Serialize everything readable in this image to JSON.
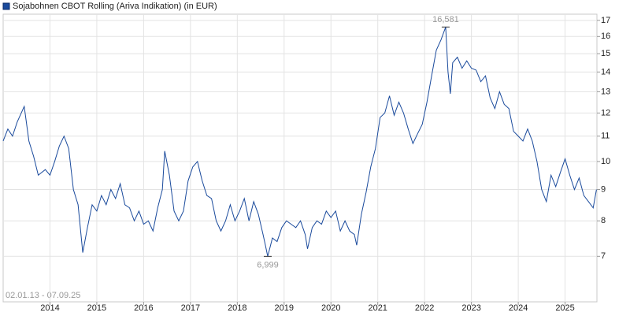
{
  "chart_data": {
    "type": "line",
    "title": "Sojabohnen CBOT Rolling (Ariva Indikation) (in EUR)",
    "annotations": [
      "02.01.13 - 07.09.25"
    ],
    "log_scale": true,
    "grid": true,
    "legend": "top-left",
    "xlim": [
      2013.0,
      2025.68
    ],
    "xticks": [
      2014,
      2015,
      2016,
      2017,
      2018,
      2019,
      2020,
      2021,
      2022,
      2023,
      2024,
      2025
    ],
    "ylim": [
      5.9,
      17.4
    ],
    "yticks": [
      7,
      8,
      9,
      10,
      11,
      12,
      13,
      14,
      15,
      16,
      17
    ],
    "x": [
      2013.0,
      2013.1,
      2013.2,
      2013.3,
      2013.45,
      2013.55,
      2013.65,
      2013.75,
      2013.9,
      2014.0,
      2014.1,
      2014.2,
      2014.3,
      2014.4,
      2014.5,
      2014.6,
      2014.7,
      2014.8,
      2014.9,
      2015.0,
      2015.1,
      2015.2,
      2015.3,
      2015.4,
      2015.5,
      2015.6,
      2015.7,
      2015.8,
      2015.9,
      2016.0,
      2016.1,
      2016.2,
      2016.3,
      2016.4,
      2016.45,
      2016.55,
      2016.65,
      2016.75,
      2016.85,
      2016.95,
      2017.05,
      2017.15,
      2017.25,
      2017.35,
      2017.45,
      2017.55,
      2017.65,
      2017.75,
      2017.85,
      2017.95,
      2018.05,
      2018.15,
      2018.25,
      2018.35,
      2018.45,
      2018.55,
      2018.6,
      2018.65,
      2018.75,
      2018.85,
      2018.95,
      2019.05,
      2019.15,
      2019.25,
      2019.35,
      2019.45,
      2019.5,
      2019.6,
      2019.7,
      2019.8,
      2019.9,
      2020.0,
      2020.1,
      2020.2,
      2020.3,
      2020.4,
      2020.5,
      2020.55,
      2020.65,
      2020.75,
      2020.85,
      2020.95,
      2021.05,
      2021.15,
      2021.25,
      2021.35,
      2021.45,
      2021.55,
      2021.65,
      2021.75,
      2021.85,
      2021.95,
      2022.05,
      2022.15,
      2022.25,
      2022.35,
      2022.45,
      2022.5,
      2022.55,
      2022.6,
      2022.7,
      2022.8,
      2022.9,
      2023.0,
      2023.1,
      2023.2,
      2023.3,
      2023.4,
      2023.5,
      2023.6,
      2023.7,
      2023.8,
      2023.9,
      2024.0,
      2024.1,
      2024.2,
      2024.3,
      2024.4,
      2024.5,
      2024.6,
      2024.7,
      2024.8,
      2024.9,
      2025.0,
      2025.1,
      2025.2,
      2025.3,
      2025.4,
      2025.5,
      2025.6,
      2025.67
    ],
    "series": [
      {
        "name": "Sojabohnen CBOT Rolling (Ariva Indikation) (in EUR)",
        "color": "#1a4a9c",
        "values": [
          10.8,
          11.3,
          11.0,
          11.6,
          12.3,
          10.8,
          10.2,
          9.5,
          9.7,
          9.5,
          10.0,
          10.6,
          11.0,
          10.5,
          9.0,
          8.5,
          7.1,
          7.8,
          8.5,
          8.3,
          8.8,
          8.5,
          9.0,
          8.7,
          9.2,
          8.5,
          8.4,
          8.0,
          8.3,
          7.9,
          8.0,
          7.7,
          8.4,
          9.0,
          10.4,
          9.5,
          8.3,
          8.0,
          8.3,
          9.3,
          9.8,
          10.0,
          9.3,
          8.8,
          8.7,
          8.0,
          7.7,
          8.0,
          8.5,
          8.0,
          8.3,
          8.7,
          8.0,
          8.6,
          8.2,
          7.6,
          7.3,
          6.999,
          7.5,
          7.4,
          7.8,
          8.0,
          7.9,
          7.8,
          8.0,
          7.6,
          7.2,
          7.8,
          8.0,
          7.9,
          8.3,
          8.1,
          8.3,
          7.7,
          8.0,
          7.7,
          7.6,
          7.3,
          8.2,
          8.9,
          9.8,
          10.5,
          11.8,
          12.0,
          12.8,
          11.9,
          12.5,
          12.0,
          11.3,
          10.7,
          11.1,
          11.5,
          12.5,
          13.8,
          15.2,
          15.8,
          16.581,
          14.0,
          12.9,
          14.5,
          14.8,
          14.2,
          14.6,
          14.2,
          14.1,
          13.5,
          13.8,
          12.7,
          12.2,
          13.0,
          12.4,
          12.2,
          11.2,
          11.0,
          10.8,
          11.3,
          10.8,
          10.0,
          9.0,
          8.6,
          9.5,
          9.1,
          9.6,
          10.1,
          9.5,
          9.0,
          9.4,
          8.8,
          8.6,
          8.4,
          9.0
        ],
        "value_labels": {
          "57": "6,999",
          "96": "16,581"
        }
      }
    ]
  }
}
